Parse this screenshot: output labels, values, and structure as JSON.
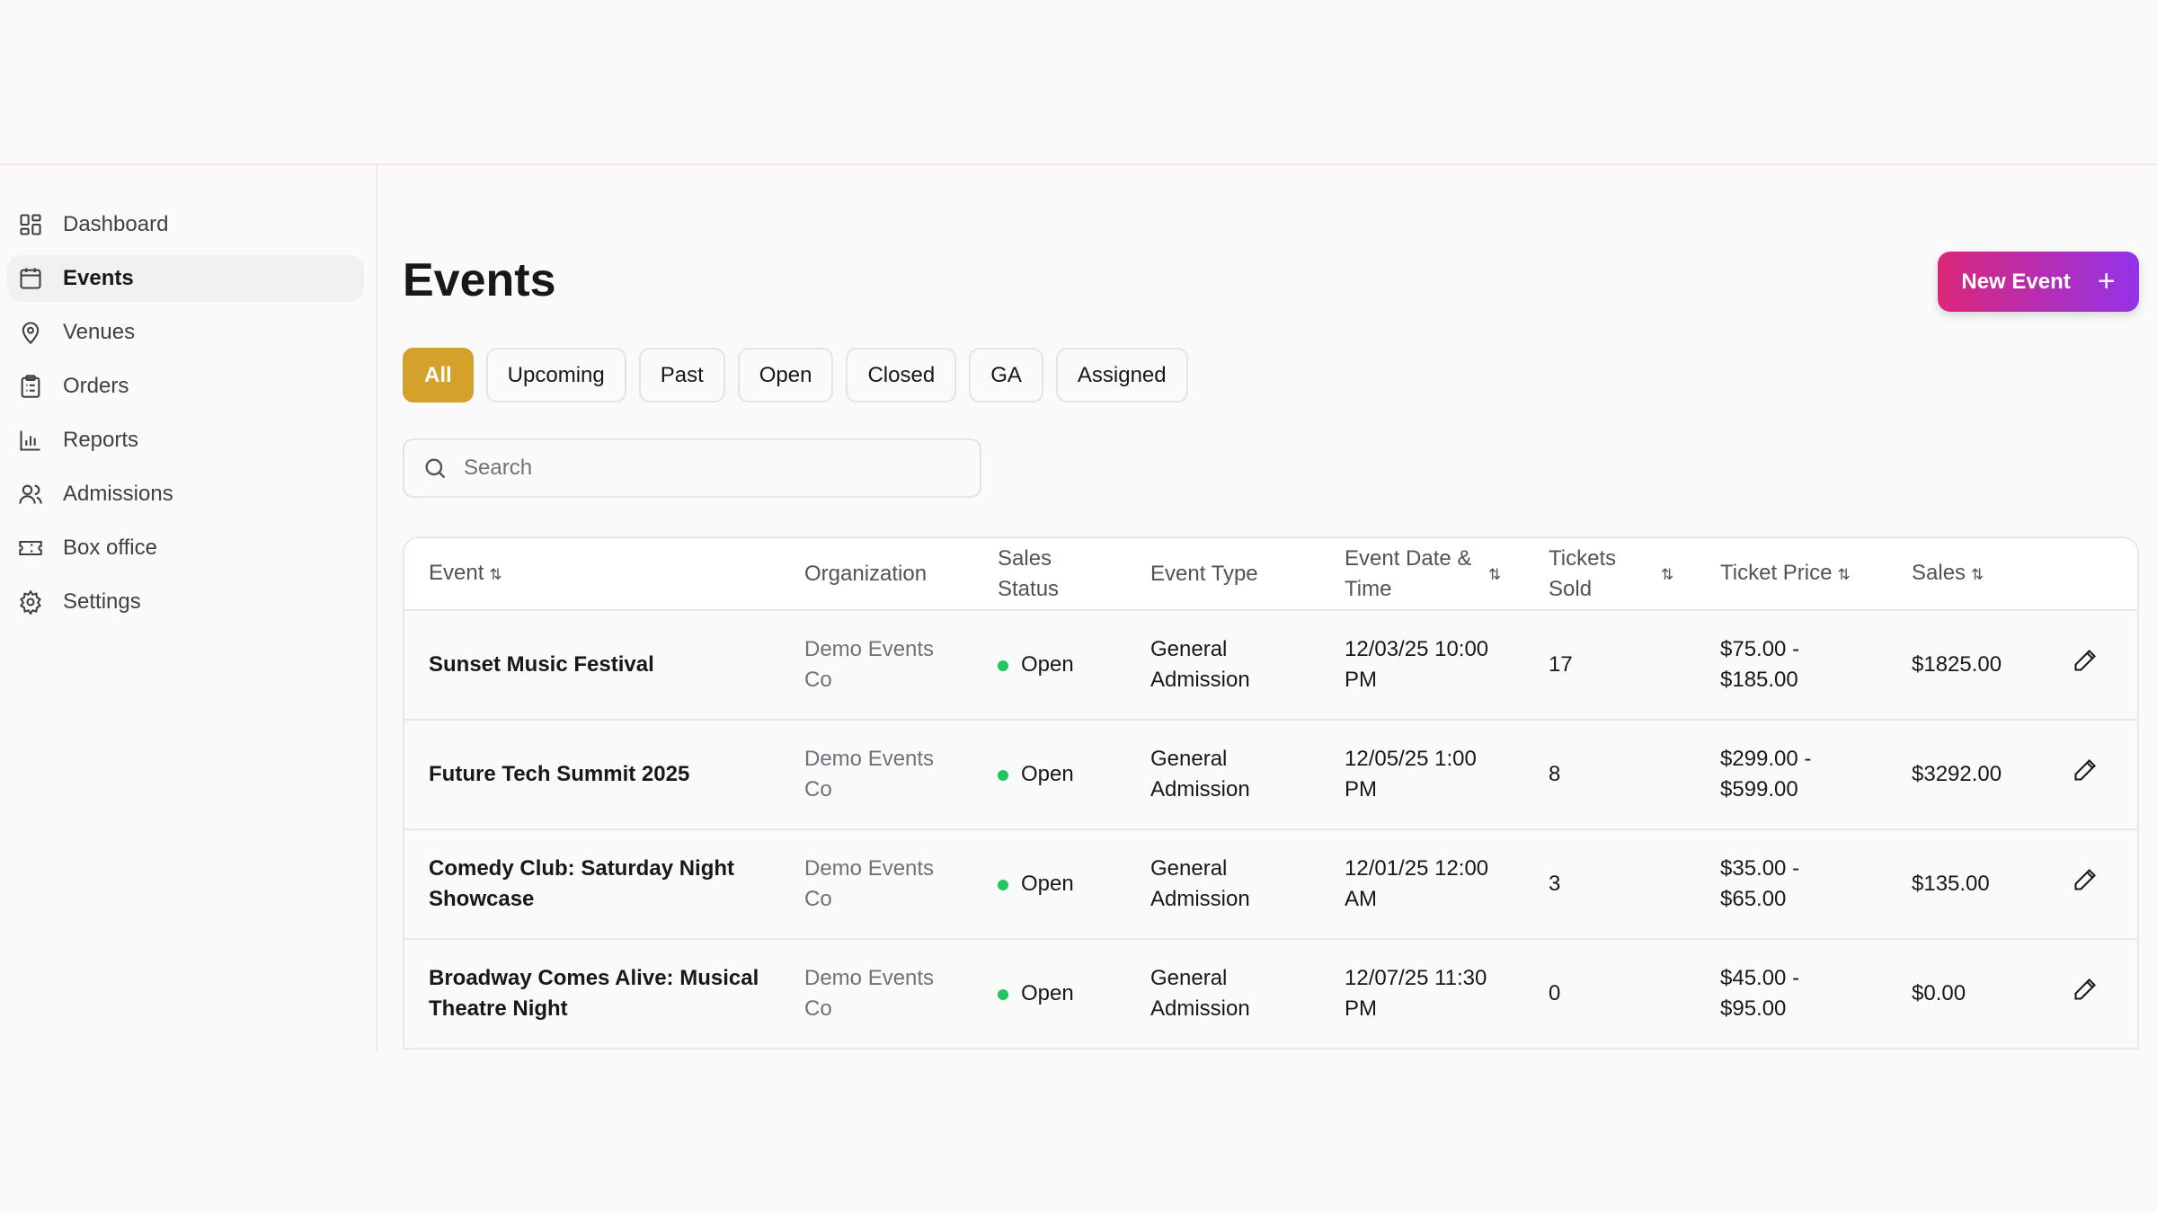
{
  "sidebar": {
    "items": [
      {
        "label": "Dashboard",
        "icon": "dashboard-icon"
      },
      {
        "label": "Events",
        "icon": "calendar-icon",
        "active": true
      },
      {
        "label": "Venues",
        "icon": "map-pin-icon"
      },
      {
        "label": "Orders",
        "icon": "clipboard-icon"
      },
      {
        "label": "Reports",
        "icon": "bar-chart-icon"
      },
      {
        "label": "Admissions",
        "icon": "users-icon"
      },
      {
        "label": "Box office",
        "icon": "ticket-icon"
      },
      {
        "label": "Settings",
        "icon": "gear-icon"
      }
    ]
  },
  "page": {
    "title": "Events",
    "new_button": "New Event"
  },
  "filters": [
    "All",
    "Upcoming",
    "Past",
    "Open",
    "Closed",
    "GA",
    "Assigned"
  ],
  "search": {
    "placeholder": "Search",
    "value": ""
  },
  "table": {
    "headers": {
      "event": "Event",
      "organization": "Organization",
      "status_1": "Sales",
      "status_2": "Status",
      "type": "Event Type",
      "date_1": "Event Date &",
      "date_2": "Time",
      "tickets_1": "Tickets",
      "tickets_2": "Sold",
      "price": "Ticket Price",
      "sales": "Sales"
    },
    "rows": [
      {
        "event_1": "Sunset Music Festival",
        "event_2": "",
        "org_1": "Demo Events",
        "org_2": "Co",
        "status": "Open",
        "type_1": "General",
        "type_2": "Admission",
        "date_1": "12/03/25 10:00",
        "date_2": "PM",
        "tickets": "17",
        "price_1": "$75.00 -",
        "price_2": "$185.00",
        "sales": "$1825.00"
      },
      {
        "event_1": "Future Tech Summit 2025",
        "event_2": "",
        "org_1": "Demo Events",
        "org_2": "Co",
        "status": "Open",
        "type_1": "General",
        "type_2": "Admission",
        "date_1": "12/05/25 1:00",
        "date_2": "PM",
        "tickets": "8",
        "price_1": "$299.00 -",
        "price_2": "$599.00",
        "sales": "$3292.00"
      },
      {
        "event_1": "Comedy Club: Saturday Night",
        "event_2": "Showcase",
        "org_1": "Demo Events",
        "org_2": "Co",
        "status": "Open",
        "type_1": "General",
        "type_2": "Admission",
        "date_1": "12/01/25 12:00",
        "date_2": "AM",
        "tickets": "3",
        "price_1": "$35.00 -",
        "price_2": "$65.00",
        "sales": "$135.00"
      },
      {
        "event_1": "Broadway Comes Alive: Musical",
        "event_2": "Theatre Night",
        "org_1": "Demo Events",
        "org_2": "Co",
        "status": "Open",
        "type_1": "General",
        "type_2": "Admission",
        "date_1": "12/07/25 11:30",
        "date_2": "PM",
        "tickets": "0",
        "price_1": "$45.00 -",
        "price_2": "$95.00",
        "sales": "$0.00"
      }
    ]
  },
  "colors": {
    "accent": "#d4a22a",
    "open_status": "#22c55e",
    "button_gradient_start": "#db2777",
    "button_gradient_end": "#9333ea"
  }
}
